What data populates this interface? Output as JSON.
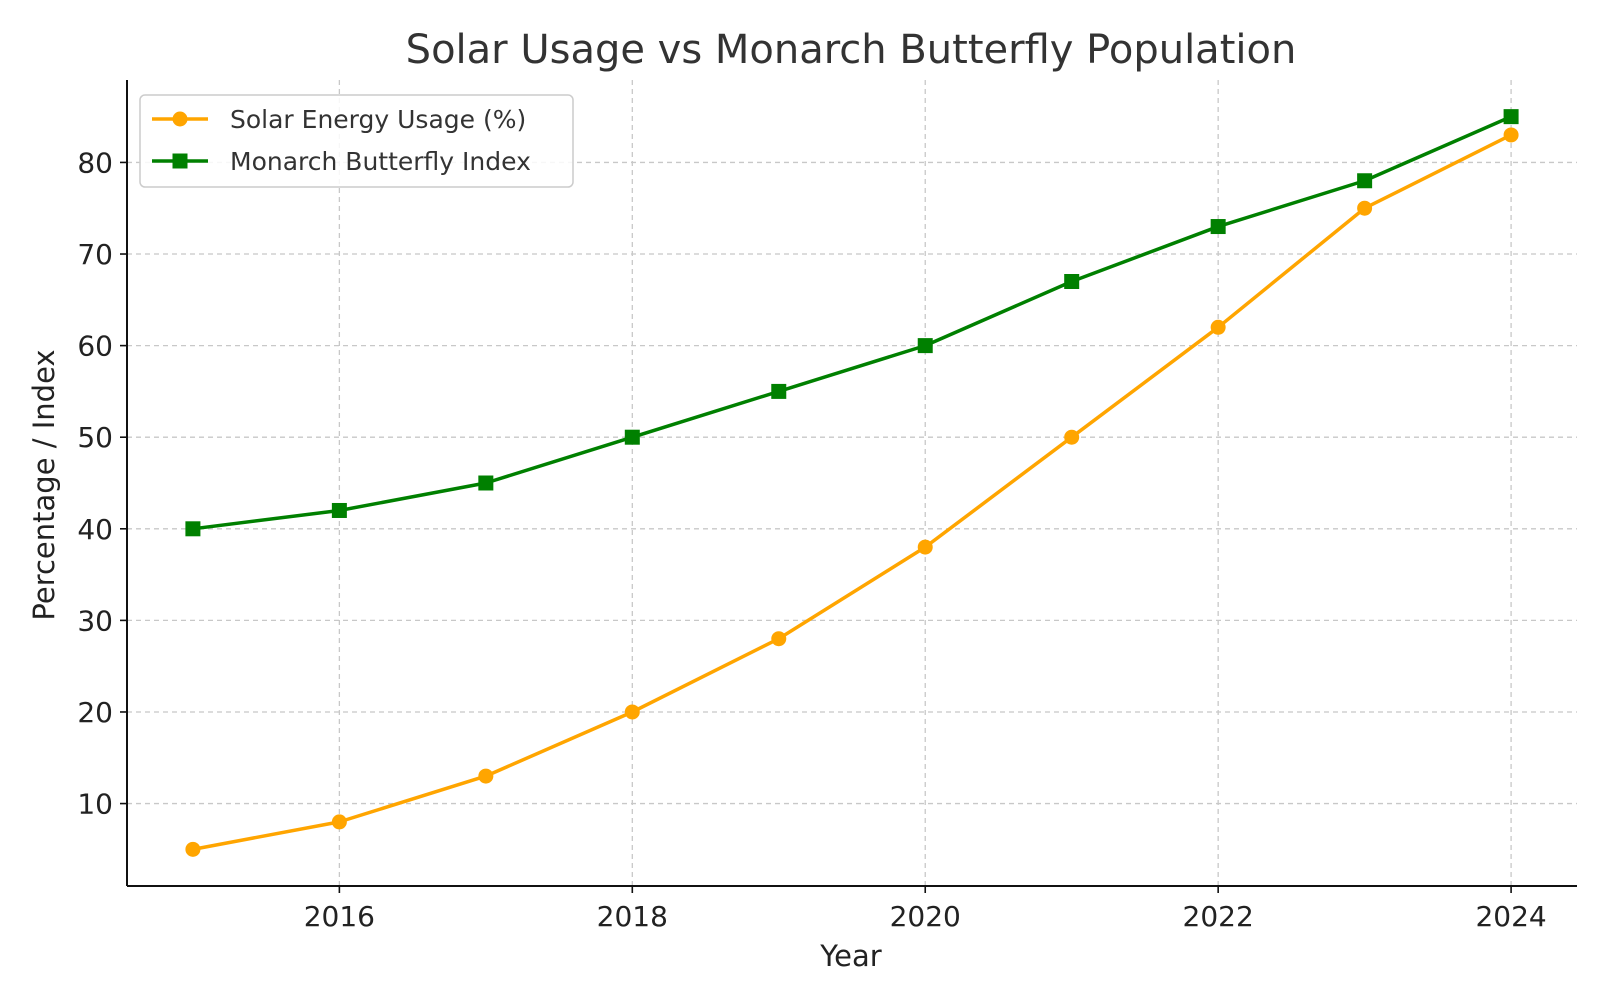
{
  "chart_data": {
    "type": "line",
    "title": "Solar Usage vs Monarch Butterfly Population",
    "xlabel": "Year",
    "ylabel": "Percentage / Index",
    "x": [
      2015,
      2016,
      2017,
      2018,
      2019,
      2020,
      2021,
      2022,
      2023,
      2024
    ],
    "xlim": [
      2014.55,
      2024.45
    ],
    "ylim": [
      1,
      89
    ],
    "xticks": [
      2016,
      2018,
      2020,
      2022,
      2024
    ],
    "yticks": [
      10,
      20,
      30,
      40,
      50,
      60,
      70,
      80
    ],
    "grid": true,
    "legend_position": "top-left",
    "series": [
      {
        "name": "Solar Energy Usage (%)",
        "color": "#ffa500",
        "marker": "circle",
        "values": [
          5,
          8,
          13,
          20,
          28,
          38,
          50,
          62,
          75,
          83
        ]
      },
      {
        "name": "Monarch Butterfly Index",
        "color": "#008000",
        "marker": "square",
        "values": [
          40,
          42,
          45,
          50,
          55,
          60,
          67,
          73,
          78,
          85
        ]
      }
    ]
  }
}
